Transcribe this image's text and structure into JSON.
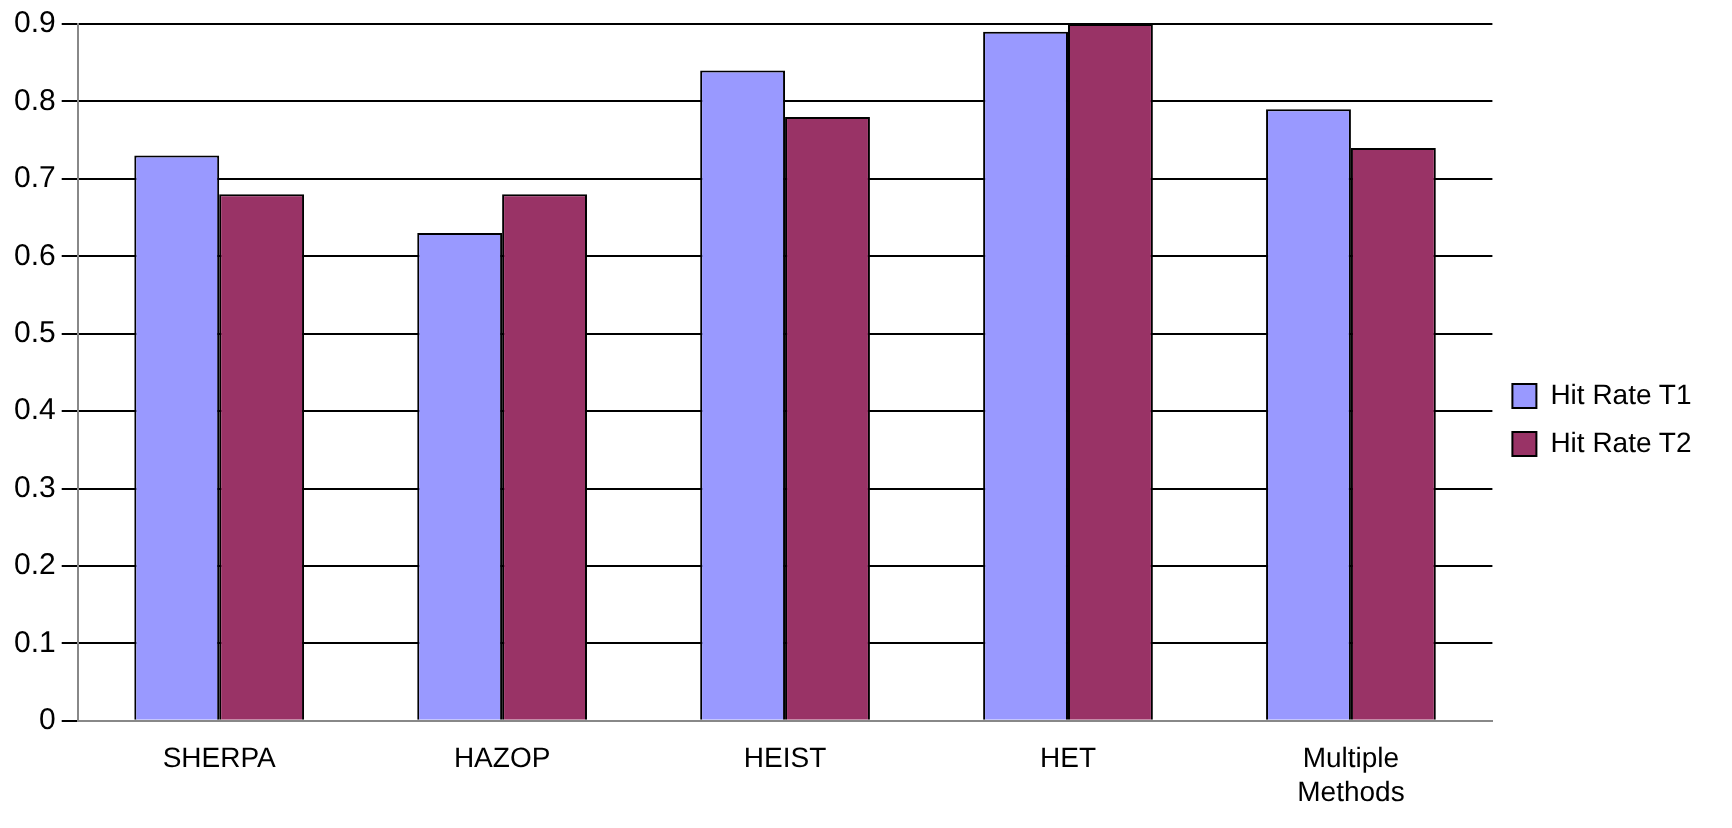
{
  "chart_data": {
    "type": "bar",
    "categories": [
      "SHERPA",
      "HAZOP",
      "HEIST",
      "HET",
      "Multiple Methods"
    ],
    "series": [
      {
        "name": "Hit Rate T1",
        "color": "#9999ff",
        "values": [
          0.73,
          0.63,
          0.84,
          0.89,
          0.79
        ]
      },
      {
        "name": "Hit Rate T2",
        "color": "#993366",
        "values": [
          0.68,
          0.68,
          0.78,
          0.9,
          0.74
        ]
      }
    ],
    "ylim": [
      0,
      0.9
    ],
    "yticks": [
      0,
      0.1,
      0.2,
      0.3,
      0.4,
      0.5,
      0.6,
      0.7,
      0.8,
      0.9
    ],
    "grid": "y",
    "legend": "right"
  }
}
